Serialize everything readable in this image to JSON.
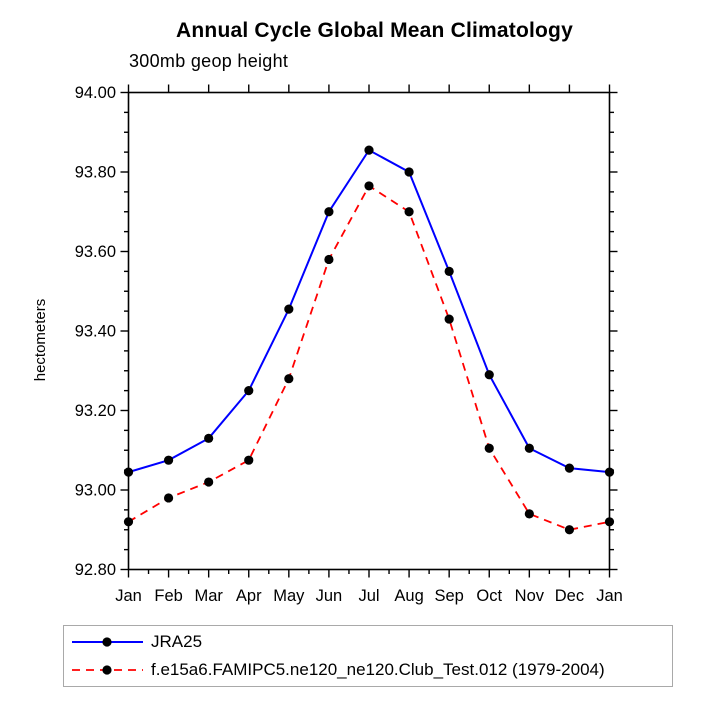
{
  "title": "Annual Cycle Global Mean Climatology",
  "subtitle": "300mb geop height",
  "colors": {
    "axis": "#000000",
    "background": "#ffffff",
    "legend_border": "#a9a9a9",
    "series_jra25": "#0000ff",
    "series_model": "#ff0000",
    "marker": "#000000"
  },
  "chart_data": {
    "type": "line",
    "title": "Annual Cycle Global Mean Climatology",
    "subtitle": "300mb geop height",
    "xlabel": "",
    "ylabel": "hectometers",
    "categories": [
      "Jan",
      "Feb",
      "Mar",
      "Apr",
      "May",
      "Jun",
      "Jul",
      "Aug",
      "Sep",
      "Oct",
      "Nov",
      "Dec",
      "Jan"
    ],
    "series": [
      {
        "name": "JRA25",
        "color": "#0000ff",
        "line_style": "solid",
        "marker": "filled-circle",
        "marker_color": "#000000",
        "values": [
          93.045,
          93.075,
          93.13,
          93.25,
          93.455,
          93.7,
          93.855,
          93.8,
          93.55,
          93.29,
          93.105,
          93.055,
          93.045
        ]
      },
      {
        "name": "f.e15a6.FAMIPC5.ne120_ne120.Club_Test.012 (1979-2004)",
        "color": "#ff0000",
        "line_style": "dashed",
        "marker": "filled-circle",
        "marker_color": "#000000",
        "values": [
          92.92,
          92.98,
          93.02,
          93.075,
          93.28,
          93.58,
          93.765,
          93.7,
          93.43,
          93.105,
          92.94,
          92.9,
          92.92
        ]
      }
    ],
    "ylim": [
      92.8,
      94.0
    ],
    "y_major_step": 0.2,
    "y_minor_step": 0.05,
    "y_tick_decimals": 2,
    "x_minor_ticks": "midpoints",
    "grid": false,
    "legend_position": "bottom-left"
  }
}
